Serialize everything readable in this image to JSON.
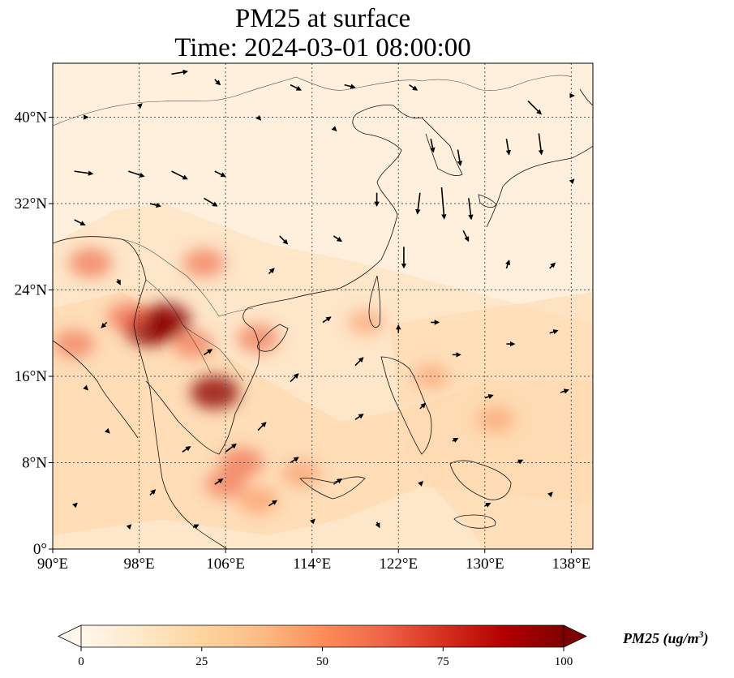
{
  "title": {
    "line1": "PM25 at surface",
    "line2": "Time: 2024-03-01 08:00:00"
  },
  "map": {
    "extent": {
      "lon_min": 90,
      "lon_max": 140,
      "lat_min": 0,
      "lat_max": 45
    },
    "lon_ticks": [
      {
        "value": 90,
        "label": "90°E"
      },
      {
        "value": 98,
        "label": "98°E"
      },
      {
        "value": 106,
        "label": "106°E"
      },
      {
        "value": 114,
        "label": "114°E"
      },
      {
        "value": 122,
        "label": "122°E"
      },
      {
        "value": 130,
        "label": "130°E"
      },
      {
        "value": 138,
        "label": "138°E"
      }
    ],
    "lat_ticks": [
      {
        "value": 0,
        "label": "0°"
      },
      {
        "value": 8,
        "label": "8°N"
      },
      {
        "value": 16,
        "label": "16°N"
      },
      {
        "value": 24,
        "label": "24°N"
      },
      {
        "value": 32,
        "label": "32°N"
      },
      {
        "value": 40,
        "label": "40°N"
      }
    ],
    "gridlines": true,
    "background_color": "#fef0dc",
    "hotspots": [
      {
        "lon": 99.0,
        "lat": 20.5,
        "intensity": 1.0
      },
      {
        "lon": 100.5,
        "lat": 21.2,
        "intensity": 0.9
      },
      {
        "lon": 97.0,
        "lat": 21.5,
        "intensity": 0.6
      },
      {
        "lon": 105.0,
        "lat": 14.5,
        "intensity": 0.85
      },
      {
        "lon": 107.5,
        "lat": 8.0,
        "intensity": 0.6
      },
      {
        "lon": 106.0,
        "lat": 6.0,
        "intensity": 0.5
      },
      {
        "lon": 109.0,
        "lat": 4.5,
        "intensity": 0.45
      },
      {
        "lon": 113.0,
        "lat": 7.0,
        "intensity": 0.4
      },
      {
        "lon": 104.0,
        "lat": 26.5,
        "intensity": 0.55
      },
      {
        "lon": 93.5,
        "lat": 26.5,
        "intensity": 0.6
      },
      {
        "lon": 92.0,
        "lat": 19.0,
        "intensity": 0.5
      },
      {
        "lon": 109.0,
        "lat": 19.5,
        "intensity": 0.55
      },
      {
        "lon": 103.0,
        "lat": 19.0,
        "intensity": 0.5
      },
      {
        "lon": 131.0,
        "lat": 12.0,
        "intensity": 0.35
      },
      {
        "lon": 125.0,
        "lat": 16.0,
        "intensity": 0.3
      },
      {
        "lon": 119.0,
        "lat": 21.0,
        "intensity": 0.35
      }
    ],
    "wind_vectors": [
      {
        "lon": 101,
        "lat": 44,
        "u": 6,
        "v": 1
      },
      {
        "lon": 105,
        "lat": 43.5,
        "u": 2,
        "v": -2
      },
      {
        "lon": 112,
        "lat": 43,
        "u": 4,
        "v": -2
      },
      {
        "lon": 117,
        "lat": 43,
        "u": 4,
        "v": -1
      },
      {
        "lon": 123,
        "lat": 43,
        "u": 3,
        "v": -2
      },
      {
        "lon": 134,
        "lat": 41.5,
        "u": 5,
        "v": -5
      },
      {
        "lon": 125,
        "lat": 38,
        "u": 1,
        "v": -5
      },
      {
        "lon": 127.5,
        "lat": 37,
        "u": 1,
        "v": -6
      },
      {
        "lon": 132,
        "lat": 38,
        "u": 1,
        "v": -6
      },
      {
        "lon": 135,
        "lat": 38.5,
        "u": 1,
        "v": -8
      },
      {
        "lon": 92,
        "lat": 35,
        "u": 7,
        "v": -1
      },
      {
        "lon": 97,
        "lat": 35,
        "u": 6,
        "v": -2
      },
      {
        "lon": 101,
        "lat": 35,
        "u": 6,
        "v": -3
      },
      {
        "lon": 105,
        "lat": 35,
        "u": 4,
        "v": -2
      },
      {
        "lon": 104,
        "lat": 32.5,
        "u": 5,
        "v": -3
      },
      {
        "lon": 99,
        "lat": 32,
        "u": 4,
        "v": -1
      },
      {
        "lon": 92,
        "lat": 30.5,
        "u": 4,
        "v": -2
      },
      {
        "lon": 120,
        "lat": 33,
        "u": 0,
        "v": -5
      },
      {
        "lon": 124,
        "lat": 33,
        "u": -1,
        "v": -8
      },
      {
        "lon": 126,
        "lat": 33.5,
        "u": 1,
        "v": -12
      },
      {
        "lon": 128.5,
        "lat": 32.5,
        "u": 1,
        "v": -8
      },
      {
        "lon": 122.5,
        "lat": 28,
        "u": 0,
        "v": -8
      },
      {
        "lon": 128,
        "lat": 29.5,
        "u": 2,
        "v": -4
      },
      {
        "lon": 111,
        "lat": 29,
        "u": 3,
        "v": -3
      },
      {
        "lon": 116,
        "lat": 29,
        "u": 3,
        "v": -2
      },
      {
        "lon": 110,
        "lat": 25.5,
        "u": 2,
        "v": 2
      },
      {
        "lon": 96,
        "lat": 25,
        "u": 1,
        "v": -2
      },
      {
        "lon": 95,
        "lat": 21,
        "u": -2,
        "v": -2
      },
      {
        "lon": 115,
        "lat": 21,
        "u": 3,
        "v": 2
      },
      {
        "lon": 118,
        "lat": 17,
        "u": 3,
        "v": 3
      },
      {
        "lon": 112,
        "lat": 15.5,
        "u": 3,
        "v": 3
      },
      {
        "lon": 104,
        "lat": 18,
        "u": 3,
        "v": 2
      },
      {
        "lon": 109,
        "lat": 11,
        "u": 3,
        "v": 3
      },
      {
        "lon": 106,
        "lat": 9,
        "u": 4,
        "v": 3
      },
      {
        "lon": 102,
        "lat": 9,
        "u": 3,
        "v": 2
      },
      {
        "lon": 112,
        "lat": 8,
        "u": 3,
        "v": 2
      },
      {
        "lon": 116,
        "lat": 6,
        "u": 3,
        "v": 2
      },
      {
        "lon": 110,
        "lat": 4,
        "u": 3,
        "v": 2
      },
      {
        "lon": 105,
        "lat": 6,
        "u": 3,
        "v": 2
      },
      {
        "lon": 99,
        "lat": 5,
        "u": 2,
        "v": 2
      },
      {
        "lon": 95,
        "lat": 11,
        "u": 1,
        "v": -1
      },
      {
        "lon": 93,
        "lat": 15,
        "u": 1,
        "v": -1
      },
      {
        "lon": 127,
        "lat": 18,
        "u": 3,
        "v": 0
      },
      {
        "lon": 132,
        "lat": 19,
        "u": 3,
        "v": 0
      },
      {
        "lon": 136,
        "lat": 20,
        "u": 3,
        "v": 1
      },
      {
        "lon": 125,
        "lat": 21,
        "u": 3,
        "v": 0
      },
      {
        "lon": 130,
        "lat": 14,
        "u": 3,
        "v": 1
      },
      {
        "lon": 137,
        "lat": 14.5,
        "u": 3,
        "v": 1
      },
      {
        "lon": 124,
        "lat": 13,
        "u": 2,
        "v": 2
      },
      {
        "lon": 127,
        "lat": 10,
        "u": 2,
        "v": 1
      },
      {
        "lon": 133,
        "lat": 8,
        "u": 2,
        "v": 1
      },
      {
        "lon": 136,
        "lat": 26,
        "u": 2,
        "v": 2
      },
      {
        "lon": 132,
        "lat": 26,
        "u": 1,
        "v": 3
      },
      {
        "lon": 122,
        "lat": 20,
        "u": 0,
        "v": 3
      },
      {
        "lon": 118,
        "lat": 12,
        "u": 3,
        "v": 2
      },
      {
        "lon": 120,
        "lat": 2.5,
        "u": 1,
        "v": -2
      },
      {
        "lon": 124,
        "lat": 6,
        "u": 1,
        "v": 1
      },
      {
        "lon": 130,
        "lat": 4,
        "u": 2,
        "v": 1
      },
      {
        "lon": 136,
        "lat": 5,
        "u": 1,
        "v": 1
      },
      {
        "lon": 92,
        "lat": 4,
        "u": 1,
        "v": 1
      },
      {
        "lon": 97,
        "lat": 2,
        "u": 1,
        "v": 1
      },
      {
        "lon": 103,
        "lat": 2,
        "u": 2,
        "v": 1
      },
      {
        "lon": 114,
        "lat": 2.5,
        "u": 1,
        "v": 1
      },
      {
        "lon": 93,
        "lat": 40,
        "u": 1,
        "v": 0
      },
      {
        "lon": 98,
        "lat": 41,
        "u": 1,
        "v": 1
      },
      {
        "lon": 109,
        "lat": 40,
        "u": 1,
        "v": -1
      },
      {
        "lon": 116,
        "lat": 39,
        "u": 1,
        "v": -1
      },
      {
        "lon": 138,
        "lat": 34,
        "u": 1,
        "v": 1
      },
      {
        "lon": 138,
        "lat": 42,
        "u": 1,
        "v": 0
      }
    ]
  },
  "colorbar": {
    "min": 0,
    "max": 100,
    "ticks": [
      {
        "value": 0,
        "label": "0"
      },
      {
        "value": 25,
        "label": "25"
      },
      {
        "value": 50,
        "label": "50"
      },
      {
        "value": 75,
        "label": "75"
      },
      {
        "value": 100,
        "label": "100"
      }
    ],
    "colors": [
      "#fff7ec",
      "#fee8c8",
      "#fdd49e",
      "#fdbb84",
      "#fc8d59",
      "#ef6548",
      "#d7301f",
      "#b30000",
      "#7f0000"
    ],
    "extend": "both",
    "label": "PM25 (ug/m3)",
    "label_base": "PM25 (ug/m",
    "label_sup": "3",
    "label_end": ")"
  }
}
